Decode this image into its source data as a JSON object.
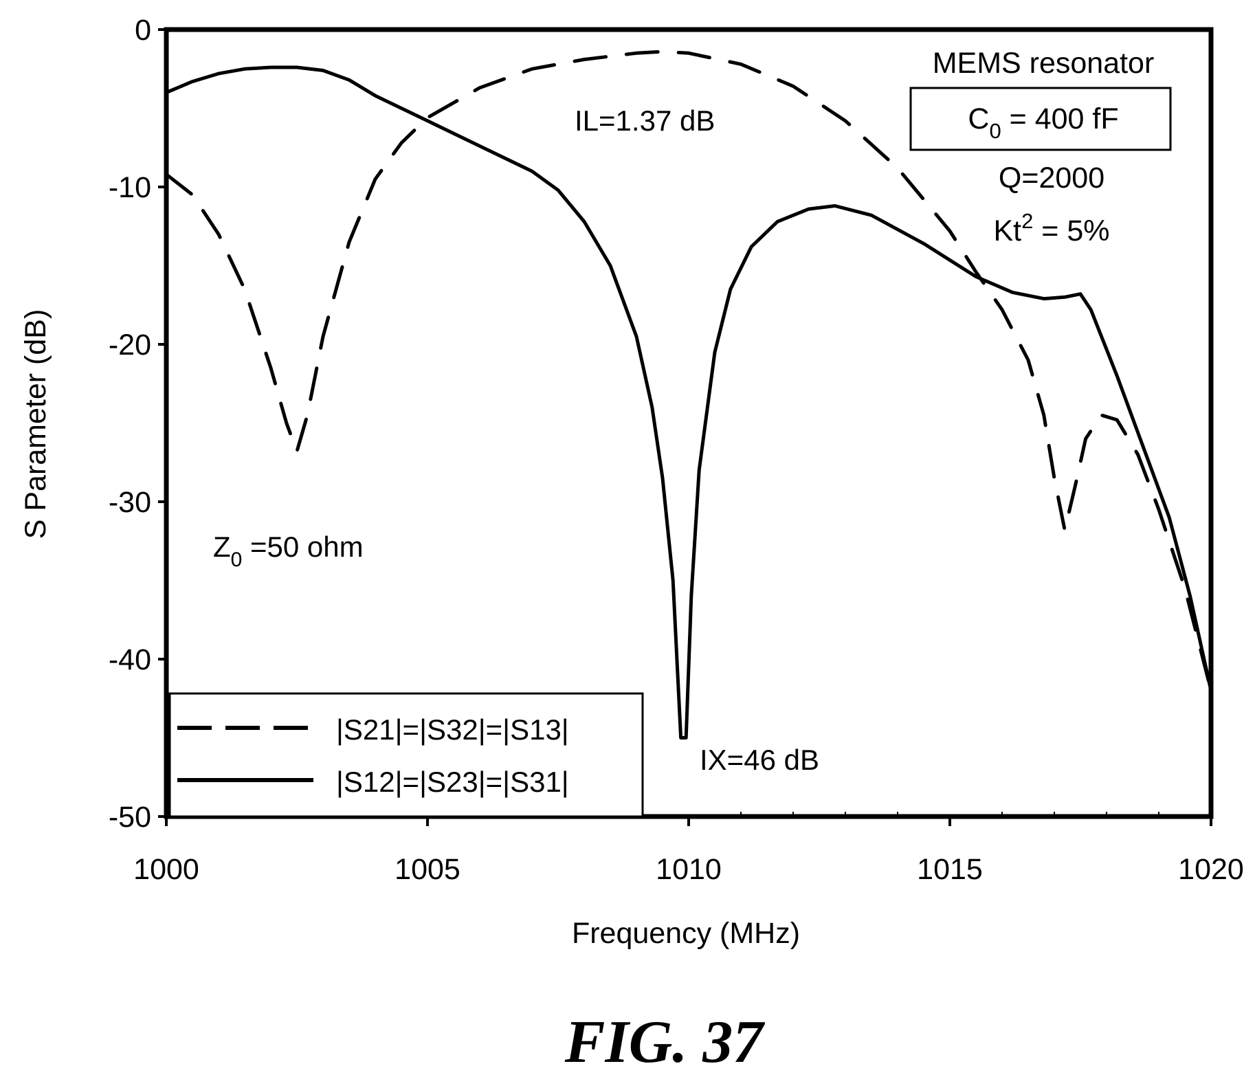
{
  "chart_data": {
    "type": "line",
    "xlabel": "Frequency (MHz)",
    "ylabel": "S Parameter (dB)",
    "xlim": [
      1000,
      1020
    ],
    "ylim": [
      -50,
      0
    ],
    "x_ticks": [
      "1000",
      "1005",
      "1010",
      "1015",
      "1020"
    ],
    "x_tick_values": [
      1000,
      1005,
      1010,
      1015,
      1020
    ],
    "y_ticks": [
      "0",
      "-10",
      "-20",
      "-30",
      "-40",
      "-50"
    ],
    "y_tick_values": [
      0,
      -10,
      -20,
      -30,
      -40,
      -50
    ],
    "grid": false,
    "legend_position": "bottom-left",
    "series": [
      {
        "name": "|S21|=|S32|=|S13|",
        "style": "dashed",
        "color": "#000000",
        "x": [
          1000,
          1000.5,
          1001,
          1001.5,
          1002,
          1002.3,
          1002.5,
          1002.7,
          1003,
          1003.5,
          1004,
          1004.5,
          1005,
          1006,
          1007,
          1008,
          1009,
          1009.5,
          1010,
          1011,
          1012,
          1013,
          1014,
          1015,
          1015.5,
          1016,
          1016.5,
          1016.8,
          1017,
          1017.2,
          1017.4,
          1017.6,
          1017.9,
          1018.2,
          1018.6,
          1019,
          1019.5,
          1020
        ],
        "y": [
          -9.2,
          -10.5,
          -13,
          -16.5,
          -21.5,
          -25,
          -26.8,
          -24.5,
          -19.5,
          -13.5,
          -9.5,
          -7.2,
          -5.6,
          -3.7,
          -2.5,
          -1.9,
          -1.5,
          -1.4,
          -1.5,
          -2.2,
          -3.6,
          -5.8,
          -8.8,
          -12.8,
          -15.4,
          -17.8,
          -21,
          -24.5,
          -28.5,
          -31.8,
          -29,
          -26,
          -24.5,
          -24.8,
          -27,
          -30.5,
          -35.5,
          -42
        ]
      },
      {
        "name": "|S12|=|S23|=|S31|",
        "style": "solid",
        "color": "#000000",
        "x": [
          1000,
          1000.5,
          1001,
          1001.5,
          1002,
          1002.5,
          1003,
          1003.5,
          1004,
          1005,
          1006,
          1007,
          1007.5,
          1008,
          1008.5,
          1009,
          1009.3,
          1009.5,
          1009.7,
          1009.85,
          1009.95,
          1010.05,
          1010.2,
          1010.5,
          1010.8,
          1011.2,
          1011.7,
          1012.3,
          1012.8,
          1013.5,
          1014.5,
          1015.5,
          1016.2,
          1016.8,
          1017.2,
          1017.5,
          1017.7,
          1018.2,
          1018.7,
          1019.2,
          1019.6,
          1020
        ],
        "y": [
          -4,
          -3.3,
          -2.8,
          -2.5,
          -2.4,
          -2.4,
          -2.6,
          -3.2,
          -4.2,
          -5.8,
          -7.4,
          -9,
          -10.2,
          -12.2,
          -15,
          -19.5,
          -24,
          -28.5,
          -35,
          -45,
          -45,
          -36,
          -28,
          -20.5,
          -16.5,
          -13.8,
          -12.2,
          -11.4,
          -11.2,
          -11.8,
          -13.6,
          -15.7,
          -16.7,
          -17.1,
          -17,
          -16.8,
          -17.8,
          -22,
          -26.5,
          -31,
          -36,
          -42
        ]
      }
    ],
    "annotations": {
      "il": "IL=1.37 dB",
      "ix": "IX=46 dB",
      "z0_main": "Z",
      "z0_sub": "0",
      "z0_rest": " =50 ohm",
      "title": "MEMS resonator",
      "c0_main": "C",
      "c0_sub": "0",
      "c0_rest": " = 400 fF",
      "q": "Q=2000",
      "kt_main": "Kt",
      "kt_sup": "2",
      "kt_rest": " = 5%"
    }
  },
  "figure_label": "FIG. 37"
}
